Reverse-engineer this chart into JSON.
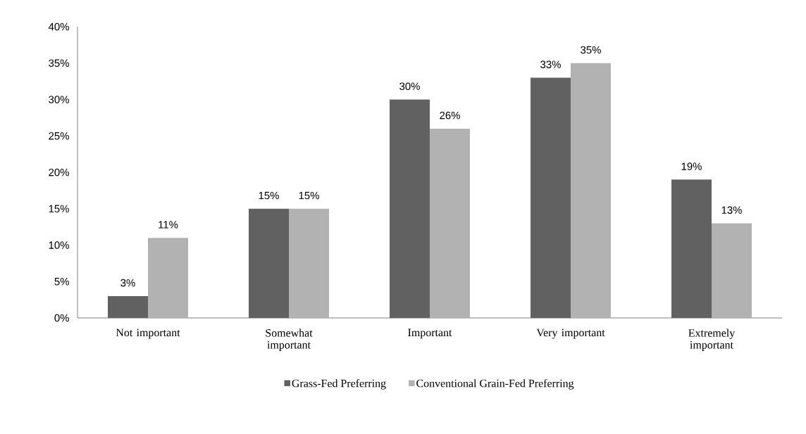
{
  "chart_data": {
    "type": "bar",
    "categories": [
      "Not important",
      "Somewhat important",
      "Important",
      "Very important",
      "Extremely important"
    ],
    "series": [
      {
        "name": "Grass-Fed Preferring",
        "color": "#616161",
        "values": [
          3,
          15,
          30,
          33,
          19
        ],
        "value_labels": [
          "3%",
          "15%",
          "30%",
          "33%",
          "19%"
        ]
      },
      {
        "name": "Conventional Grain-Fed Preferring",
        "color": "#b2b2b2",
        "values": [
          11,
          15,
          26,
          35,
          13
        ],
        "value_labels": [
          "11%",
          "15%",
          "26%",
          "35%",
          "13%"
        ]
      }
    ],
    "ylim": [
      0,
      40
    ],
    "yticks": [
      {
        "value": 0,
        "label": "0%"
      },
      {
        "value": 5,
        "label": "5%"
      },
      {
        "value": 10,
        "label": "10%"
      },
      {
        "value": 15,
        "label": "15%"
      },
      {
        "value": 20,
        "label": "20%"
      },
      {
        "value": 25,
        "label": "25%"
      },
      {
        "value": 30,
        "label": "30%"
      },
      {
        "value": 35,
        "label": "35%"
      },
      {
        "value": 40,
        "label": "40%"
      }
    ],
    "grid": false,
    "legend": "bottom"
  }
}
